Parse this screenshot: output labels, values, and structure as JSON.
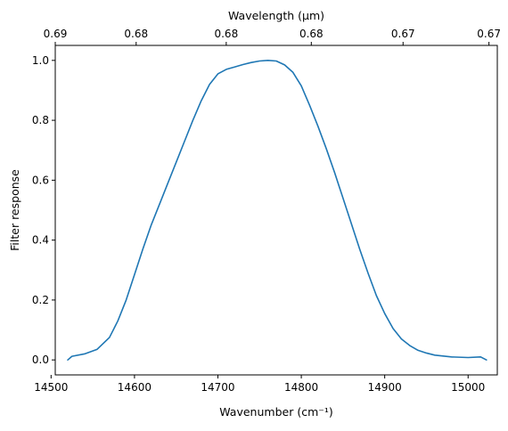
{
  "chart_data": {
    "type": "line",
    "xlabel": "Wavenumber (cm⁻¹)",
    "ylabel": "Filter response",
    "top_xlabel": "Wavelength (μm)",
    "xlim": [
      14505,
      15035
    ],
    "ylim": [
      -0.05,
      1.05
    ],
    "x_ticks": [
      14500,
      14600,
      14700,
      14800,
      14900,
      15000
    ],
    "y_ticks": [
      0.0,
      0.2,
      0.4,
      0.6,
      0.8,
      1.0
    ],
    "y_tick_labels": [
      "0.0",
      "0.2",
      "0.4",
      "0.6",
      "0.8",
      "1.0"
    ],
    "top_ticks": [
      {
        "at": 14505,
        "label": "0.69"
      },
      {
        "at": 14602,
        "label": "0.68"
      },
      {
        "at": 14710,
        "label": "0.68"
      },
      {
        "at": 14812,
        "label": "0.68"
      },
      {
        "at": 14922,
        "label": "0.67"
      },
      {
        "at": 15025,
        "label": "0.67"
      }
    ],
    "grid": false,
    "color": "#1f77b4",
    "series": [
      {
        "x": [
          14520,
          14525,
          14540,
          14555,
          14570,
          14580,
          14590,
          14600,
          14610,
          14620,
          14630,
          14640,
          14650,
          14660,
          14670,
          14680,
          14690,
          14700,
          14710,
          14720,
          14730,
          14740,
          14750,
          14760,
          14770,
          14780,
          14790,
          14800,
          14810,
          14820,
          14830,
          14840,
          14850,
          14860,
          14870,
          14880,
          14890,
          14900,
          14910,
          14920,
          14930,
          14940,
          14950,
          14960,
          14980,
          15000,
          15015,
          15022
        ],
        "y": [
          0.0,
          0.012,
          0.02,
          0.035,
          0.075,
          0.13,
          0.2,
          0.285,
          0.37,
          0.45,
          0.52,
          0.59,
          0.66,
          0.73,
          0.8,
          0.865,
          0.92,
          0.955,
          0.97,
          0.978,
          0.986,
          0.993,
          0.998,
          1.0,
          0.998,
          0.985,
          0.96,
          0.915,
          0.85,
          0.78,
          0.705,
          0.625,
          0.54,
          0.455,
          0.37,
          0.29,
          0.215,
          0.155,
          0.105,
          0.07,
          0.048,
          0.032,
          0.023,
          0.016,
          0.01,
          0.008,
          0.01,
          0.0
        ]
      }
    ]
  }
}
